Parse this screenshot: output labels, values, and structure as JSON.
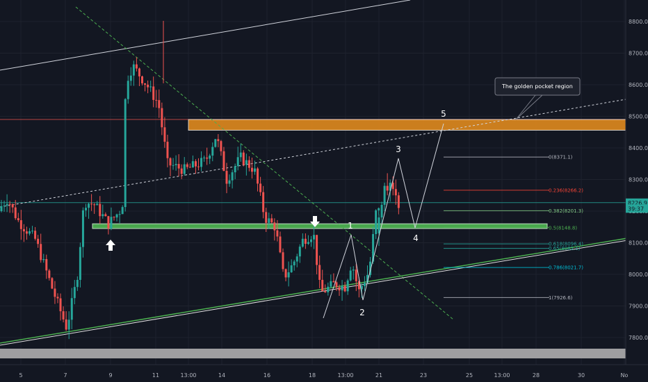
{
  "chart_data": {
    "type": "candlestick",
    "y_axis": {
      "ticks": [
        7800,
        7900,
        8000,
        8100,
        8200,
        8300,
        8400,
        8500,
        8600,
        8700,
        8800
      ],
      "tick_labels": [
        "7800.0",
        "7900.0",
        "8000.0",
        "8100.0",
        "8200.0",
        "8300.0",
        "8400.0",
        "8500.0",
        "8600.0",
        "8700.0",
        "8800.0"
      ]
    },
    "x_axis": {
      "tick_labels": [
        "5",
        "7",
        "9",
        "11",
        "13:00",
        "14",
        "16",
        "18",
        "13:00",
        "21",
        "23",
        "25",
        "13:00",
        "28",
        "30",
        "No"
      ]
    },
    "price_tags": [
      {
        "label": "8226.9",
        "value": 8226.9,
        "color": "#26a69a"
      },
      {
        "label": "39:37",
        "value": 8208,
        "color": "#26a69a"
      }
    ],
    "fibonacci": [
      {
        "label": "0(8371.1)",
        "value": 8371.1,
        "color": "#b2b5be"
      },
      {
        "label": "0.236(8266.2)",
        "value": 8266.2,
        "color": "#f44336"
      },
      {
        "label": "0.382(8201.3)",
        "value": 8201.3,
        "color": "#81c784"
      },
      {
        "label": "0.5(8148.8)",
        "value": 8148.8,
        "color": "#4caf50"
      },
      {
        "label": "0.618(8096.4)",
        "value": 8096.4,
        "color": "#26a69a"
      },
      {
        "label": "0.65(8082.1)",
        "value": 8082.1,
        "color": "#26a69a"
      },
      {
        "label": "0.786(8021.7)",
        "value": 8021.7,
        "color": "#00bcd4"
      },
      {
        "label": "1(7926.6)",
        "value": 7926.6,
        "color": "#b2b5be"
      }
    ],
    "wave_labels": [
      "1",
      "2",
      "3",
      "4",
      "5"
    ],
    "annotation": "The golden pocket region",
    "zones": [
      {
        "name": "golden-pocket-zone",
        "low": 8456,
        "high": 8490,
        "color": "#e08a1e"
      },
      {
        "name": "support-zone",
        "low": 8145,
        "high": 8160,
        "color": "#4caf50"
      }
    ],
    "horizontal_lines": [
      {
        "name": "red-level",
        "value": 8490,
        "color": "#e0504a"
      },
      {
        "name": "current-price-line",
        "value": 8226.9,
        "color": "#26a69a"
      }
    ],
    "candles_tail": [
      {
        "o": 8130,
        "h": 8190,
        "l": 8090,
        "c": 8180
      },
      {
        "o": 8180,
        "h": 8230,
        "l": 8160,
        "c": 8220
      },
      {
        "o": 8220,
        "h": 8290,
        "l": 8200,
        "c": 8280
      },
      {
        "o": 8280,
        "h": 8320,
        "l": 8250,
        "c": 8265
      },
      {
        "o": 8265,
        "h": 8300,
        "l": 8230,
        "c": 8290
      },
      {
        "o": 8290,
        "h": 8310,
        "l": 8250,
        "c": 8270
      },
      {
        "o": 8270,
        "h": 8300,
        "l": 8220,
        "c": 8250
      },
      {
        "o": 8250,
        "h": 8260,
        "l": 8190,
        "c": 8210
      }
    ]
  }
}
